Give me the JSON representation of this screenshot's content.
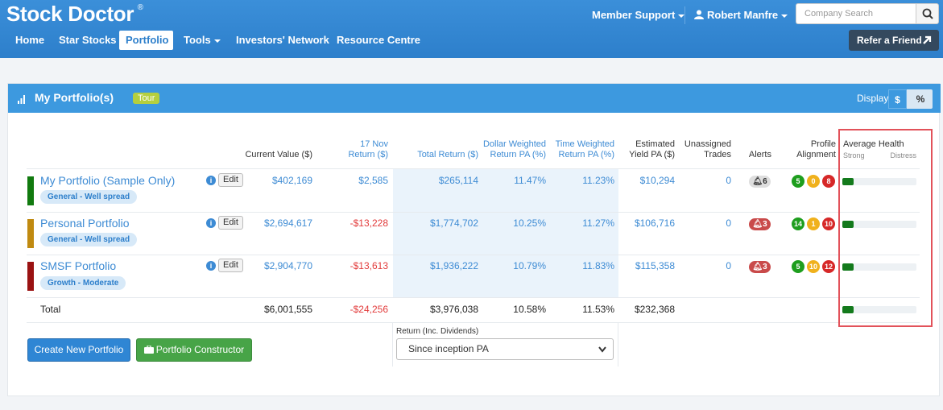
{
  "brand": {
    "name": "Stock Doctor",
    "mark": "®"
  },
  "topnav": {
    "items": [
      {
        "label": "Home"
      },
      {
        "label": "Star Stocks"
      },
      {
        "label": "Portfolio"
      },
      {
        "label": "Tools"
      },
      {
        "label": "Investors' Network"
      },
      {
        "label": "Resource Centre"
      }
    ],
    "active": "Portfolio",
    "member_support": "Member Support",
    "user_name": "Robert Manfre",
    "search_placeholder": "Company Search",
    "refer_label": "Refer a Friend"
  },
  "panel": {
    "title": "My Portfolio(s)",
    "tour_label": "Tour",
    "display_label": "Display",
    "display_dollar": "$",
    "display_percent": "%"
  },
  "table": {
    "headers": {
      "current_value": "Current Value ($)",
      "return_date": "17 Nov",
      "return_label": "Return ($)",
      "total_return": "Total Return ($)",
      "dw_1": "Dollar Weighted",
      "dw_2": "Return PA (%)",
      "tw_1": "Time Weighted",
      "tw_2": "Return PA (%)",
      "ey_1": "Estimated",
      "ey_2": "Yield PA ($)",
      "ut_1": "Unassigned",
      "ut_2": "Trades",
      "alerts": "Alerts",
      "pa_1": "Profile",
      "pa_2": "Alignment",
      "health": "Average Health",
      "health_strong": "Strong",
      "health_distress": "Distress"
    },
    "rows": [
      {
        "name": "My Portfolio (Sample Only)",
        "tag": "General - Well spread",
        "bar_color": "#117a0f",
        "edit": "Edit",
        "info": "i",
        "current_value": "$402,169",
        "day_return": "$2,585",
        "day_return_negative": false,
        "total_return": "$265,114",
        "dollar_weighted": "11.47%",
        "time_weighted": "11.23%",
        "yield": "$10,294",
        "unassigned": "0",
        "alerts": "6",
        "alerts_color": "#dedede",
        "alignment": [
          {
            "value": "5",
            "color": "#1e9e1e"
          },
          {
            "value": "0",
            "color": "#f0b11c"
          },
          {
            "value": "8",
            "color": "#d62828"
          }
        ],
        "health_fraction": 0.15
      },
      {
        "name": "Personal Portfolio",
        "tag": "General - Well spread",
        "bar_color": "#c08a10",
        "edit": "Edit",
        "info": "i",
        "current_value": "$2,694,617",
        "day_return": "-$13,228",
        "day_return_negative": true,
        "total_return": "$1,774,702",
        "dollar_weighted": "10.25%",
        "time_weighted": "11.27%",
        "yield": "$106,716",
        "unassigned": "0",
        "alerts": "3",
        "alerts_color": "#c94a4a",
        "alignment": [
          {
            "value": "14",
            "color": "#1e9e1e"
          },
          {
            "value": "1",
            "color": "#f0b11c"
          },
          {
            "value": "10",
            "color": "#d62828"
          }
        ],
        "health_fraction": 0.15
      },
      {
        "name": "SMSF Portfolio",
        "tag": "Growth - Moderate",
        "bar_color": "#9a1212",
        "edit": "Edit",
        "info": "i",
        "current_value": "$2,904,770",
        "day_return": "-$13,613",
        "day_return_negative": true,
        "total_return": "$1,936,222",
        "dollar_weighted": "10.79%",
        "time_weighted": "11.83%",
        "yield": "$115,358",
        "unassigned": "0",
        "alerts": "3",
        "alerts_color": "#c94a4a",
        "alignment": [
          {
            "value": "5",
            "color": "#1e9e1e"
          },
          {
            "value": "10",
            "color": "#f0b11c"
          },
          {
            "value": "12",
            "color": "#d62828"
          }
        ],
        "health_fraction": 0.15
      }
    ],
    "total": {
      "label": "Total",
      "current_value": "$6,001,555",
      "day_return": "-$24,256",
      "total_return": "$3,976,038",
      "dollar_weighted": "10.58%",
      "time_weighted": "11.53%",
      "yield": "$232,368",
      "health_fraction": 0.15
    }
  },
  "footer": {
    "create_label": "Create New Portfolio",
    "constructor_label": "Portfolio Constructor",
    "return_select_label": "Return (Inc. Dividends)",
    "return_select_value": "Since inception PA"
  }
}
